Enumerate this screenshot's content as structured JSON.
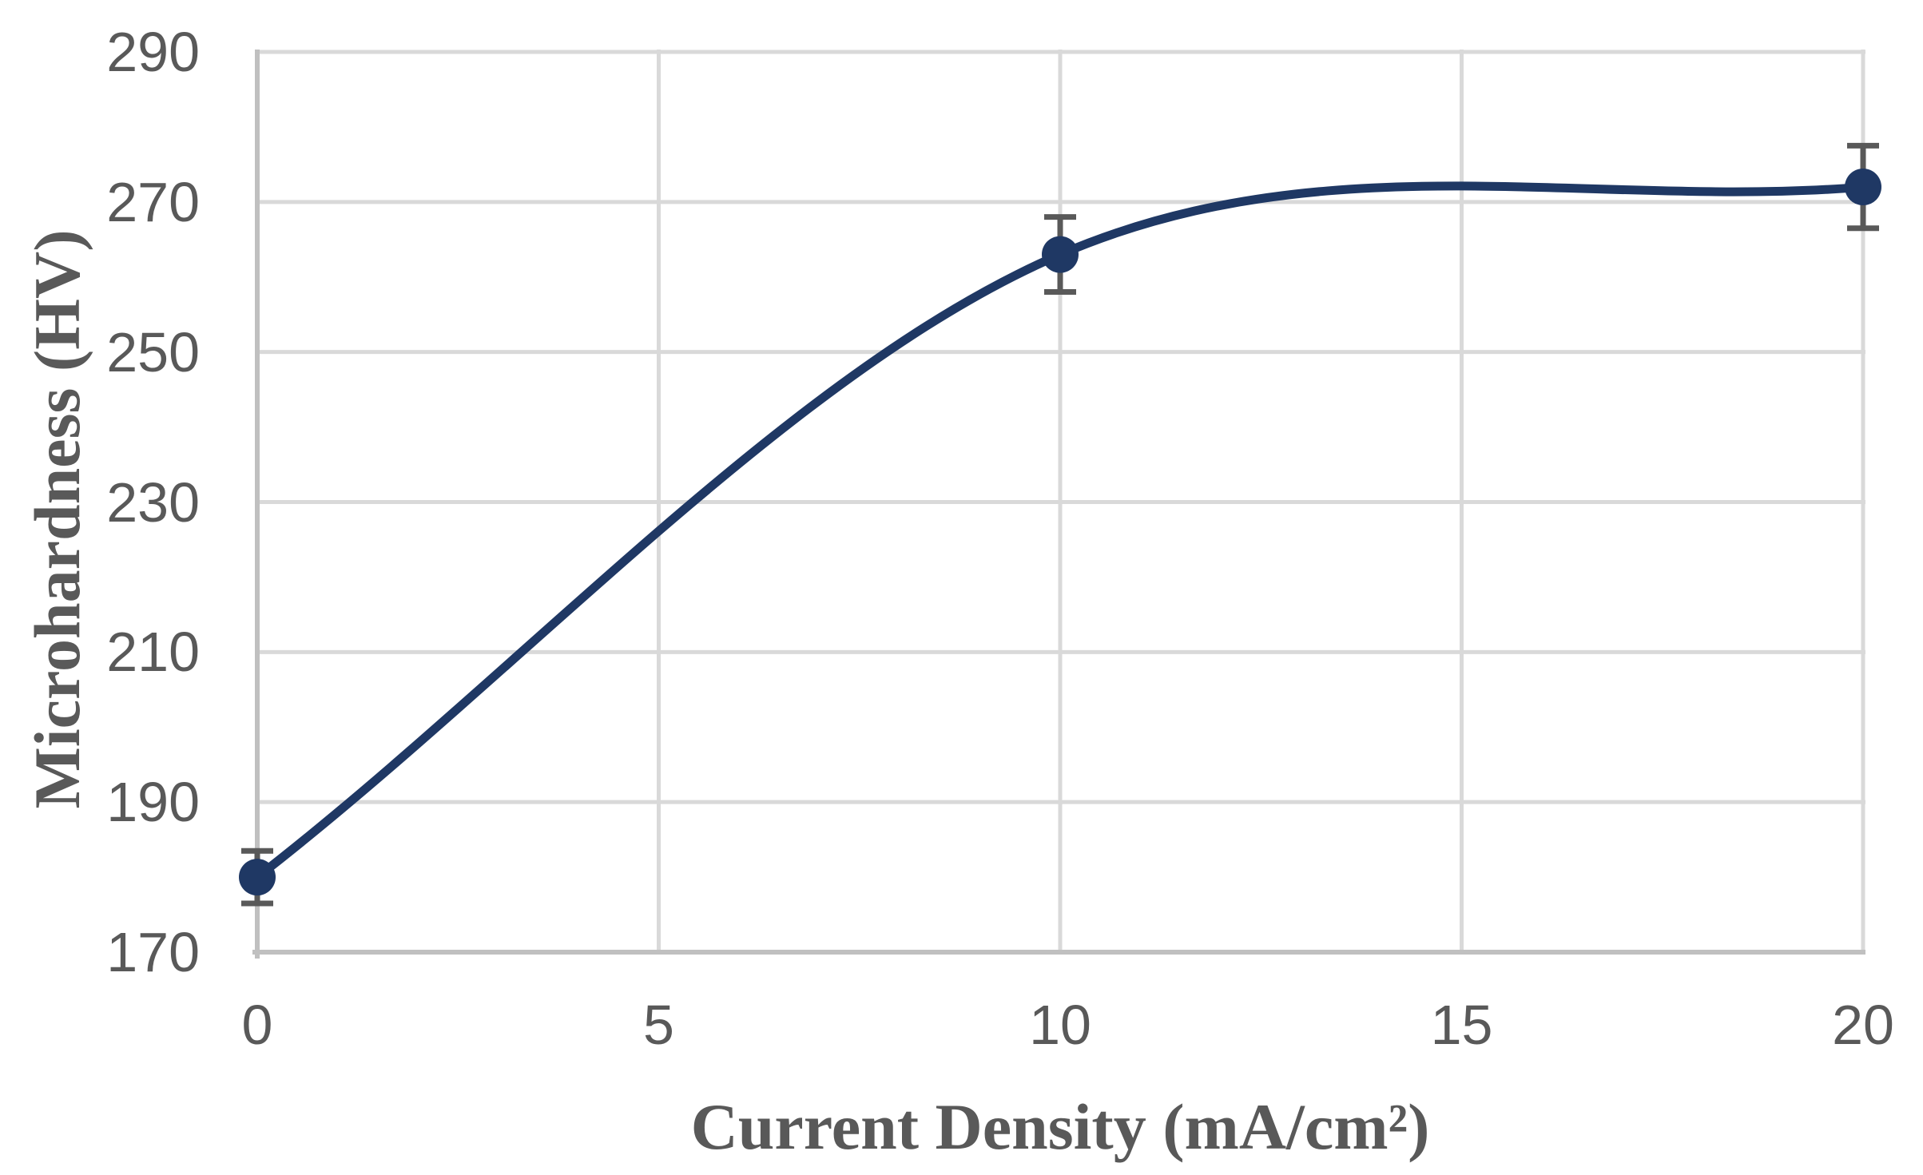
{
  "chart_data": {
    "type": "line",
    "title": "",
    "xlabel": "Current Density (mA/cm²)",
    "ylabel": "Microhardness (HV)",
    "x": [
      0,
      10,
      20
    ],
    "series": [
      {
        "name": "Microhardness",
        "values": [
          180,
          263,
          272
        ],
        "errors": [
          3.5,
          5,
          5.5
        ]
      }
    ],
    "xlim": [
      0,
      20
    ],
    "ylim": [
      170,
      290
    ],
    "x_ticks": [
      0,
      5,
      10,
      15,
      20
    ],
    "y_ticks": [
      290,
      270,
      250,
      230,
      210,
      190,
      170
    ],
    "grid": true,
    "smooth_line": true,
    "legend_position": "none",
    "colors": {
      "line": "#1F3864",
      "marker": "#1F3864",
      "error_bar": "#595959",
      "gridline": "#D9D9D9",
      "axis_line": "#C0C0C0",
      "tick_label": "#595959",
      "axis_title": "#595959",
      "background": "#FFFFFF"
    }
  }
}
